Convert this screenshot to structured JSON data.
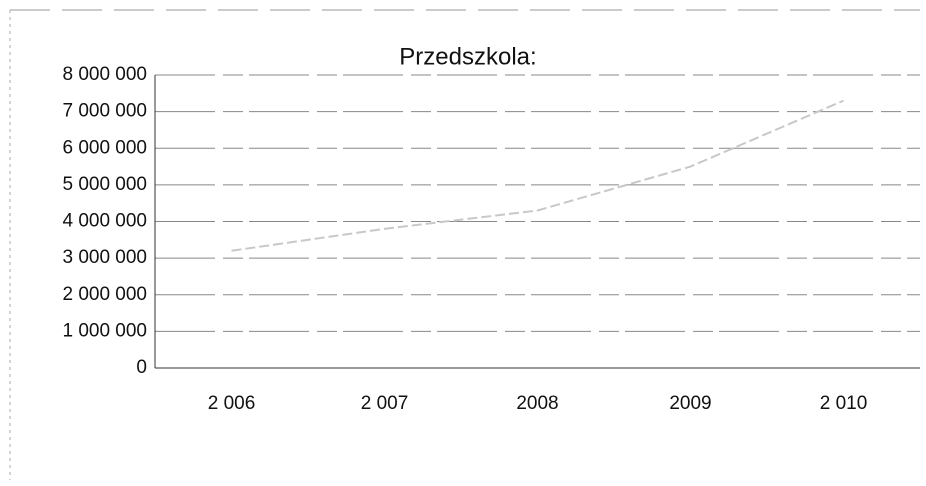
{
  "chart_data": {
    "type": "line",
    "title": "Przedszkola:",
    "categories": [
      "2 006",
      "2 007",
      "2008",
      "2009",
      "2 010"
    ],
    "series": [
      {
        "name": "Przedszkola",
        "color": "#c8c8c8",
        "values": [
          3200000,
          3800000,
          4300000,
          5500000,
          7300000
        ]
      }
    ],
    "ylim": [
      0,
      8000000
    ],
    "yticks": [
      0,
      {
        "value": 1000000,
        "label": "1 000 000"
      },
      {
        "value": 2000000,
        "label": "2 000 000"
      },
      {
        "value": 3000000,
        "label": "3 000 000"
      },
      {
        "value": 4000000,
        "label": "4 000 000"
      },
      {
        "value": 5000000,
        "label": "5 000 000"
      },
      {
        "value": 6000000,
        "label": "6 000 000"
      },
      {
        "value": 7000000,
        "label": "7 000 000"
      },
      {
        "value": 8000000,
        "label": "8 000 000"
      }
    ],
    "grid": true
  }
}
